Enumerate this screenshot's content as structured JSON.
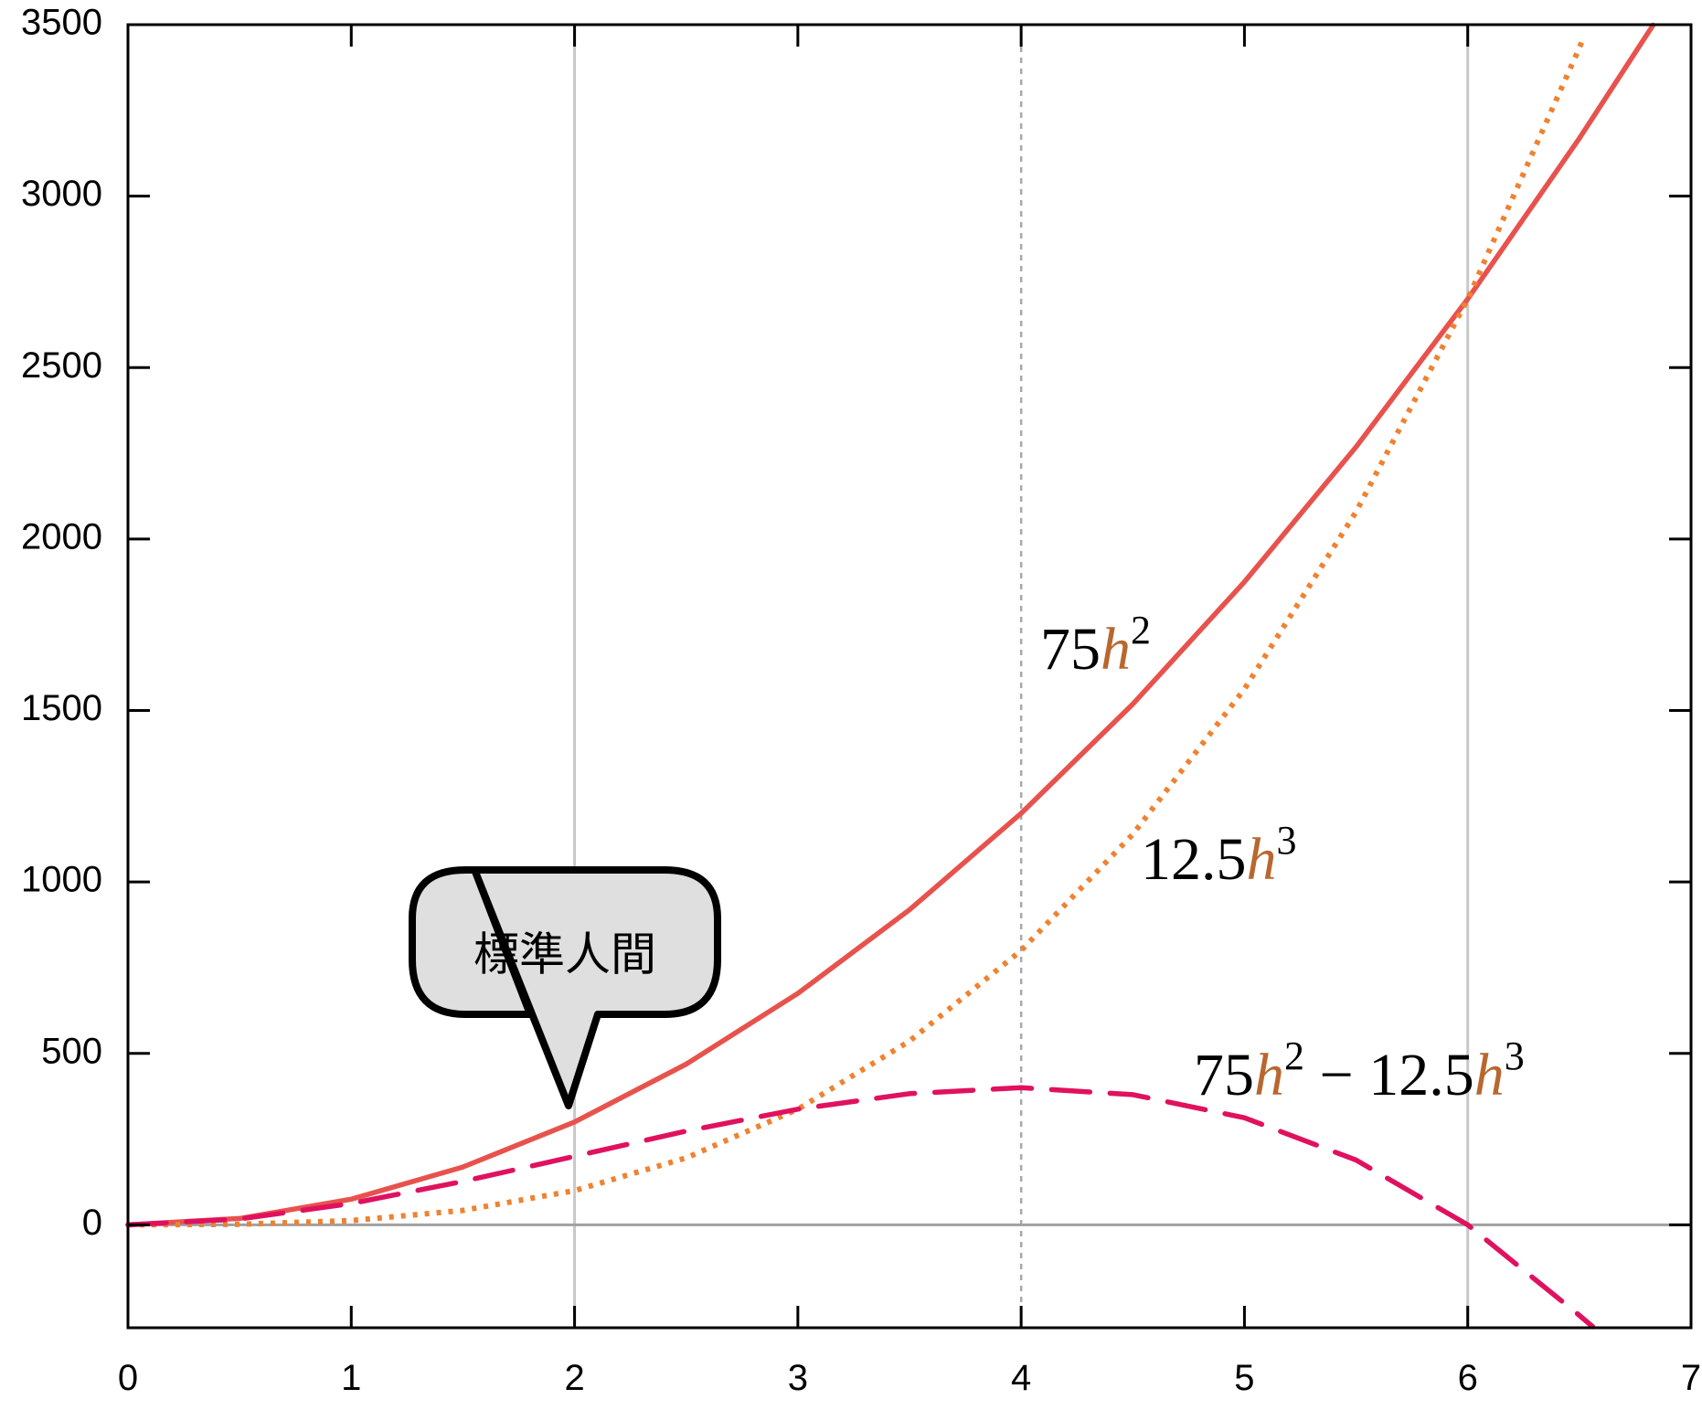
{
  "chart_data": {
    "type": "line",
    "title": "",
    "xlabel": "",
    "ylabel": "",
    "xlim": [
      0,
      7
    ],
    "ylim": [
      -300,
      3500
    ],
    "x_ticks": [
      0,
      1,
      2,
      3,
      4,
      5,
      6,
      7
    ],
    "x_tick_labels": [
      "0",
      "1",
      "2",
      "3",
      "4",
      "5",
      "6",
      "7"
    ],
    "y_ticks": [
      0,
      500,
      1000,
      1500,
      2000,
      2500,
      3000,
      3500
    ],
    "y_tick_labels": [
      "0",
      "500",
      "1000",
      "1500",
      "2000",
      "2500",
      "3000",
      "3500"
    ],
    "vertical_gridlines": [
      2,
      6
    ],
    "dotted_reference_line_x": 4,
    "zero_line": true,
    "series": [
      {
        "id": "quadratic",
        "style": "solid",
        "color": "#e8524d",
        "label_parts": [
          "75",
          "h",
          "2"
        ],
        "x": [
          0,
          0.5,
          1,
          1.5,
          2,
          2.5,
          3,
          3.5,
          4,
          4.5,
          5,
          5.5,
          6,
          6.5,
          6.83
        ],
        "values": [
          0,
          18.75,
          75,
          168.75,
          300,
          468.75,
          675,
          918.75,
          1200,
          1518.75,
          1875,
          2268.75,
          2700,
          3168.75,
          3498.7
        ]
      },
      {
        "id": "cubic",
        "style": "dotted",
        "color": "#ef8231",
        "label_parts": [
          "12.5",
          "h",
          "3"
        ],
        "x": [
          0,
          0.5,
          1,
          1.5,
          2,
          2.5,
          3,
          3.5,
          4,
          4.5,
          5,
          5.5,
          6,
          6.5,
          6.52
        ],
        "values": [
          0,
          1.56,
          12.5,
          42.19,
          100,
          195.31,
          337.5,
          535.94,
          800,
          1139.06,
          1562.5,
          2079.69,
          2700,
          3432.81,
          3464.5
        ]
      },
      {
        "id": "difference",
        "style": "dashed",
        "color": "#e0115f",
        "label_parts": [
          "75",
          "h",
          "2",
          " − 12.5",
          "h",
          "3"
        ],
        "x": [
          0,
          0.5,
          1,
          1.5,
          2,
          2.5,
          3,
          3.5,
          4,
          4.5,
          5,
          5.5,
          6,
          6.5,
          6.56
        ],
        "values": [
          0,
          17.19,
          62.5,
          126.56,
          200,
          273.44,
          337.5,
          382.81,
          400,
          379.69,
          312.5,
          189.06,
          0,
          -264.06,
          -297.2
        ]
      }
    ],
    "variable_color": "#b8672e",
    "callout": {
      "text": "標準人間",
      "points_to": [
        2,
        300
      ]
    }
  }
}
